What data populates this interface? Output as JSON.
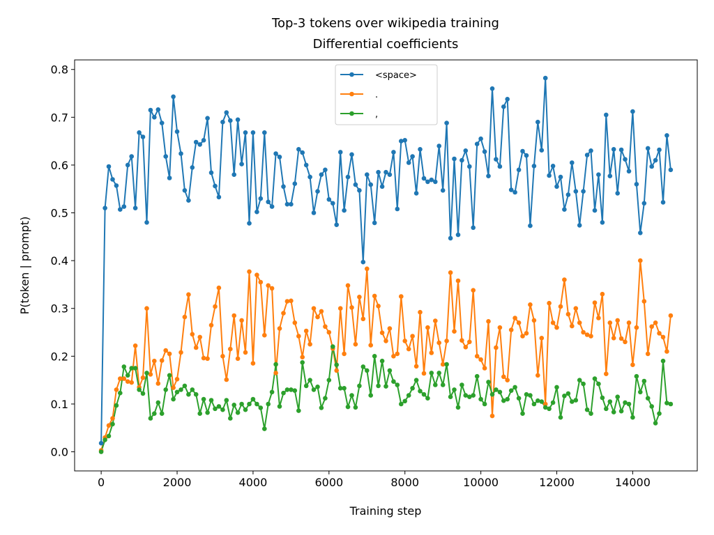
{
  "chart_data": {
    "type": "line",
    "title": "Top-3 tokens over wikipedia training",
    "subtitle": "Differential coefficients",
    "xlabel": "Training step",
    "ylabel": "P(token | prompt)",
    "xlim": [
      -700,
      15700
    ],
    "ylim": [
      -0.04,
      0.82
    ],
    "xticks": [
      0,
      2000,
      4000,
      6000,
      8000,
      10000,
      12000,
      14000
    ],
    "yticks": [
      0.0,
      0.1,
      0.2,
      0.3,
      0.4,
      0.5,
      0.6,
      0.7,
      0.8
    ],
    "grid": false,
    "legend_position": "upper center",
    "x": [
      0,
      100,
      200,
      300,
      400,
      500,
      600,
      700,
      800,
      900,
      1000,
      1100,
      1200,
      1300,
      1400,
      1500,
      1600,
      1700,
      1800,
      1900,
      2000,
      2100,
      2200,
      2300,
      2400,
      2500,
      2600,
      2700,
      2800,
      2900,
      3000,
      3100,
      3200,
      3300,
      3400,
      3500,
      3600,
      3700,
      3800,
      3900,
      4000,
      4100,
      4200,
      4300,
      4400,
      4500,
      4600,
      4700,
      4800,
      4900,
      5000,
      5100,
      5200,
      5300,
      5400,
      5500,
      5600,
      5700,
      5800,
      5900,
      6000,
      6100,
      6200,
      6300,
      6400,
      6500,
      6600,
      6700,
      6800,
      6900,
      7000,
      7100,
      7200,
      7300,
      7400,
      7500,
      7600,
      7700,
      7800,
      7900,
      8000,
      8100,
      8200,
      8300,
      8400,
      8500,
      8600,
      8700,
      8800,
      8900,
      9000,
      9100,
      9200,
      9300,
      9400,
      9500,
      9600,
      9700,
      9800,
      9900,
      10000,
      10100,
      10200,
      10300,
      10400,
      10500,
      10600,
      10700,
      10800,
      10900,
      11000,
      11100,
      11200,
      11300,
      11400,
      11500,
      11600,
      11700,
      11800,
      11900,
      12000,
      12100,
      12200,
      12300,
      12400,
      12500,
      12600,
      12700,
      12800,
      12900,
      13000,
      13100,
      13200,
      13300,
      13400,
      13500,
      13600,
      13700,
      13800,
      13900,
      14000,
      14100,
      14200,
      14300,
      14400,
      14500,
      14600,
      14700,
      14800,
      14900,
      15000
    ],
    "series": [
      {
        "name": "<space>",
        "color": "#1f77b4",
        "values": [
          0.018,
          0.51,
          0.597,
          0.57,
          0.557,
          0.507,
          0.513,
          0.6,
          0.618,
          0.51,
          0.668,
          0.659,
          0.48,
          0.715,
          0.7,
          0.716,
          0.688,
          0.618,
          0.573,
          0.743,
          0.67,
          0.624,
          0.547,
          0.526,
          0.595,
          0.648,
          0.643,
          0.652,
          0.698,
          0.584,
          0.556,
          0.533,
          0.69,
          0.71,
          0.693,
          0.58,
          0.695,
          0.602,
          0.668,
          0.478,
          0.668,
          0.502,
          0.53,
          0.668,
          0.523,
          0.513,
          0.624,
          0.617,
          0.555,
          0.518,
          0.518,
          0.561,
          0.633,
          0.626,
          0.6,
          0.575,
          0.5,
          0.545,
          0.58,
          0.59,
          0.528,
          0.52,
          0.475,
          0.627,
          0.505,
          0.575,
          0.622,
          0.559,
          0.547,
          0.397,
          0.58,
          0.559,
          0.479,
          0.585,
          0.555,
          0.585,
          0.58,
          0.627,
          0.508,
          0.65,
          0.652,
          0.605,
          0.618,
          0.541,
          0.633,
          0.572,
          0.565,
          0.569,
          0.565,
          0.64,
          0.547,
          0.688,
          0.447,
          0.613,
          0.454,
          0.61,
          0.63,
          0.597,
          0.469,
          0.644,
          0.655,
          0.628,
          0.577,
          0.76,
          0.612,
          0.597,
          0.722,
          0.738,
          0.548,
          0.543,
          0.59,
          0.629,
          0.62,
          0.473,
          0.598,
          0.69,
          0.631,
          0.782,
          0.578,
          0.598,
          0.555,
          0.575,
          0.507,
          0.538,
          0.605,
          0.545,
          0.474,
          0.545,
          0.621,
          0.63,
          0.505,
          0.58,
          0.48,
          0.705,
          0.577,
          0.633,
          0.541,
          0.632,
          0.612,
          0.587,
          0.712,
          0.56,
          0.458,
          0.52,
          0.635,
          0.597,
          0.61,
          0.632,
          0.522,
          0.662,
          0.59
        ]
      },
      {
        "name": ".",
        "color": "#ff7f0e",
        "values": [
          0.003,
          0.03,
          0.055,
          0.07,
          0.13,
          0.153,
          0.153,
          0.147,
          0.145,
          0.222,
          0.135,
          0.155,
          0.3,
          0.162,
          0.19,
          0.143,
          0.191,
          0.212,
          0.205,
          0.134,
          0.152,
          0.208,
          0.282,
          0.329,
          0.246,
          0.218,
          0.24,
          0.196,
          0.195,
          0.265,
          0.304,
          0.343,
          0.2,
          0.151,
          0.215,
          0.285,
          0.195,
          0.275,
          0.208,
          0.377,
          0.185,
          0.37,
          0.355,
          0.244,
          0.348,
          0.342,
          0.165,
          0.258,
          0.29,
          0.315,
          0.316,
          0.27,
          0.242,
          0.198,
          0.253,
          0.225,
          0.3,
          0.282,
          0.294,
          0.262,
          0.25,
          0.216,
          0.17,
          0.3,
          0.205,
          0.348,
          0.302,
          0.225,
          0.324,
          0.278,
          0.383,
          0.223,
          0.326,
          0.305,
          0.249,
          0.232,
          0.258,
          0.2,
          0.205,
          0.325,
          0.232,
          0.215,
          0.242,
          0.179,
          0.292,
          0.164,
          0.26,
          0.207,
          0.274,
          0.228,
          0.183,
          0.232,
          0.375,
          0.252,
          0.358,
          0.233,
          0.219,
          0.23,
          0.338,
          0.2,
          0.193,
          0.175,
          0.273,
          0.075,
          0.218,
          0.26,
          0.157,
          0.15,
          0.255,
          0.28,
          0.27,
          0.242,
          0.248,
          0.308,
          0.275,
          0.16,
          0.238,
          0.1,
          0.311,
          0.27,
          0.26,
          0.304,
          0.36,
          0.288,
          0.263,
          0.3,
          0.27,
          0.25,
          0.245,
          0.242,
          0.312,
          0.28,
          0.33,
          0.163,
          0.27,
          0.238,
          0.275,
          0.237,
          0.23,
          0.27,
          0.182,
          0.26,
          0.4,
          0.315,
          0.205,
          0.262,
          0.27,
          0.248,
          0.24,
          0.21,
          0.285
        ]
      },
      {
        "name": ",",
        "color": "#2ca02c",
        "values": [
          0.0,
          0.025,
          0.033,
          0.058,
          0.097,
          0.123,
          0.178,
          0.16,
          0.175,
          0.175,
          0.13,
          0.122,
          0.165,
          0.07,
          0.08,
          0.103,
          0.08,
          0.13,
          0.16,
          0.11,
          0.125,
          0.13,
          0.138,
          0.12,
          0.13,
          0.12,
          0.08,
          0.11,
          0.082,
          0.108,
          0.09,
          0.095,
          0.088,
          0.108,
          0.07,
          0.098,
          0.082,
          0.1,
          0.088,
          0.1,
          0.11,
          0.1,
          0.092,
          0.048,
          0.1,
          0.125,
          0.183,
          0.095,
          0.123,
          0.13,
          0.13,
          0.128,
          0.086,
          0.187,
          0.138,
          0.15,
          0.13,
          0.136,
          0.092,
          0.112,
          0.15,
          0.22,
          0.182,
          0.133,
          0.133,
          0.094,
          0.118,
          0.093,
          0.138,
          0.178,
          0.17,
          0.118,
          0.2,
          0.138,
          0.19,
          0.137,
          0.17,
          0.147,
          0.14,
          0.1,
          0.106,
          0.118,
          0.133,
          0.15,
          0.127,
          0.12,
          0.112,
          0.165,
          0.14,
          0.165,
          0.14,
          0.183,
          0.115,
          0.13,
          0.093,
          0.14,
          0.118,
          0.115,
          0.118,
          0.158,
          0.11,
          0.1,
          0.146,
          0.12,
          0.13,
          0.125,
          0.107,
          0.11,
          0.128,
          0.135,
          0.112,
          0.08,
          0.12,
          0.118,
          0.1,
          0.107,
          0.105,
          0.093,
          0.09,
          0.103,
          0.135,
          0.072,
          0.117,
          0.122,
          0.105,
          0.108,
          0.15,
          0.142,
          0.088,
          0.08,
          0.153,
          0.142,
          0.113,
          0.09,
          0.105,
          0.083,
          0.115,
          0.085,
          0.103,
          0.1,
          0.072,
          0.158,
          0.125,
          0.148,
          0.112,
          0.095,
          0.06,
          0.08,
          0.19,
          0.102,
          0.1
        ]
      }
    ]
  }
}
